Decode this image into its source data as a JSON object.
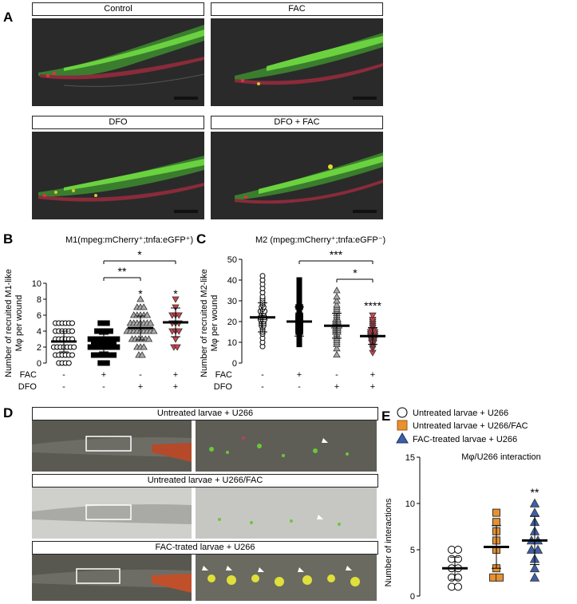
{
  "panelA": {
    "letter": "A",
    "images": [
      {
        "label": "Control"
      },
      {
        "label": "FAC"
      },
      {
        "label": "DFO"
      },
      {
        "label": "DFO + FAC"
      }
    ]
  },
  "panelB": {
    "letter": "B",
    "title": "M1(mpeg:mCherry⁺;tnfa:eGFP⁺)",
    "ylabel_line1": "Number of recruited M1-like",
    "ylabel_line2": "Mφ per wound",
    "row_labels": [
      "FAC",
      "DFO"
    ],
    "conditions": [
      {
        "FAC": "-",
        "DFO": "-"
      },
      {
        "FAC": "+",
        "DFO": "-"
      },
      {
        "FAC": "-",
        "DFO": "+"
      },
      {
        "FAC": "+",
        "DFO": "+"
      }
    ],
    "significance": {
      "bracket1": "**",
      "bracket2": "*",
      "group3": "*",
      "group4": "*"
    }
  },
  "panelC": {
    "letter": "C",
    "title": "M2 (mpeg:mCherry⁺;tnfa:eGFP⁻)",
    "ylabel_line1": "Number of recruited M2-like",
    "ylabel_line2": "Mφ per wound",
    "row_labels": [
      "FAC",
      "DFO"
    ],
    "conditions": [
      {
        "FAC": "-",
        "DFO": "-"
      },
      {
        "FAC": "+",
        "DFO": "-"
      },
      {
        "FAC": "-",
        "DFO": "+"
      },
      {
        "FAC": "+",
        "DFO": "+"
      }
    ],
    "significance": {
      "bracket1": "***",
      "bracket2": "*",
      "group4": "****"
    }
  },
  "panelD": {
    "letter": "D",
    "rows": [
      {
        "label": "Untreated larvae + U266"
      },
      {
        "label": "Untreated larvae + U266/FAC"
      },
      {
        "label": "FAC-trated larvae + U266"
      }
    ]
  },
  "panelE": {
    "letter": "E",
    "legend": [
      {
        "label": "Untreated larvae + U266",
        "color": "#ffffff"
      },
      {
        "label": "Untreated larvae + U266/FAC",
        "color": "#e8912e"
      },
      {
        "label": "FAC-treated larvae + U266",
        "color": "#3d5fa8"
      }
    ],
    "title": "Mφ/U266 interaction",
    "ylabel": "Number of interactions",
    "significance": {
      "group3": "**"
    }
  },
  "chart_data": [
    {
      "type": "scatter",
      "title": "M1(mpeg:mCherry⁺;tnfa:eGFP⁺)",
      "ylabel": "Number of recruited M1-like Mφ per wound",
      "ylim": [
        0,
        10
      ],
      "yticks": [
        0,
        2,
        4,
        6,
        8,
        10
      ],
      "groups": [
        {
          "marker": "circle-open",
          "color": "#ffffff",
          "mean": 2.7,
          "sd": 1.3,
          "values": [
            0,
            0,
            0,
            0,
            1,
            1,
            1,
            1,
            1,
            1,
            2,
            2,
            2,
            2,
            2,
            2,
            2,
            3,
            3,
            3,
            3,
            3,
            3,
            4,
            4,
            4,
            4,
            4,
            4,
            5,
            5,
            5,
            5,
            5,
            5
          ]
        },
        {
          "marker": "square",
          "color": "#000000",
          "mean": 2.5,
          "sd": 1.1,
          "values": [
            0,
            0,
            0,
            1,
            1,
            1,
            1,
            1,
            1,
            1,
            2,
            2,
            2,
            2,
            2,
            2,
            2,
            2,
            2,
            3,
            3,
            3,
            3,
            3,
            3,
            3,
            3,
            3,
            4,
            4,
            4,
            4,
            4,
            5,
            5,
            5
          ]
        },
        {
          "marker": "triangle",
          "color": "#aaaaaa",
          "mean": 4.4,
          "sd": 1.5,
          "values": [
            1,
            1,
            2,
            2,
            2,
            3,
            3,
            3,
            3,
            3,
            3,
            4,
            4,
            4,
            4,
            4,
            4,
            4,
            4,
            4,
            5,
            5,
            5,
            5,
            5,
            5,
            5,
            6,
            6,
            6,
            6,
            6,
            7,
            7,
            7,
            8
          ]
        },
        {
          "marker": "triangle-down",
          "color": "#d3404c",
          "mean": 5.1,
          "sd": 1.8,
          "values": [
            2,
            2,
            3,
            4,
            4,
            4,
            5,
            5,
            5,
            6,
            6,
            6,
            7,
            8
          ]
        }
      ]
    },
    {
      "type": "scatter",
      "title": "M2 (mpeg:mCherry⁺;tnfa:eGFP⁻)",
      "ylabel": "Number of recruited M2-like Mφ per wound",
      "ylim": [
        0,
        50
      ],
      "yticks": [
        0,
        10,
        20,
        30,
        40,
        50
      ],
      "groups": [
        {
          "marker": "circle-open",
          "color": "#ffffff",
          "mean": 22,
          "sd": 7,
          "values": [
            8,
            10,
            12,
            14,
            15,
            16,
            17,
            18,
            18,
            19,
            19,
            20,
            20,
            21,
            21,
            21,
            22,
            22,
            22,
            23,
            23,
            24,
            24,
            25,
            25,
            25,
            26,
            27,
            27,
            28,
            29,
            30,
            31,
            32,
            34,
            36,
            38,
            40,
            42
          ]
        },
        {
          "marker": "square",
          "color": "#000000",
          "mean": 20,
          "sd": 7,
          "values": [
            9,
            10,
            11,
            12,
            13,
            14,
            15,
            15,
            16,
            16,
            17,
            17,
            18,
            18,
            19,
            19,
            20,
            20,
            21,
            21,
            22,
            22,
            23,
            23,
            24,
            25,
            26,
            27,
            27,
            28,
            29,
            30,
            31,
            32,
            34,
            36,
            38,
            40
          ]
        },
        {
          "marker": "triangle",
          "color": "#aaaaaa",
          "mean": 18,
          "sd": 6,
          "values": [
            4,
            7,
            9,
            10,
            11,
            12,
            13,
            14,
            15,
            15,
            16,
            16,
            17,
            17,
            18,
            18,
            18,
            19,
            19,
            20,
            20,
            21,
            21,
            22,
            23,
            24,
            25,
            26,
            27,
            28,
            30,
            32,
            35
          ]
        },
        {
          "marker": "triangle-down",
          "color": "#d3404c",
          "mean": 13,
          "sd": 4,
          "values": [
            5,
            7,
            8,
            9,
            10,
            10,
            11,
            11,
            12,
            12,
            12,
            13,
            13,
            13,
            14,
            14,
            14,
            15,
            15,
            15,
            16,
            16,
            17,
            18,
            19,
            20,
            21,
            23
          ]
        }
      ]
    },
    {
      "type": "scatter",
      "title": "Mφ/U266 interaction",
      "ylabel": "Number of interactions",
      "ylim": [
        0,
        15
      ],
      "yticks": [
        0,
        5,
        10,
        15
      ],
      "series": [
        {
          "name": "Untreated larvae + U266",
          "marker": "circle-open",
          "color": "#ffffff",
          "mean": 3.0,
          "sd": 1.2,
          "values": [
            1,
            1,
            2,
            2,
            3,
            3,
            4,
            4,
            5,
            5
          ]
        },
        {
          "name": "Untreated larvae + U266/FAC",
          "marker": "square",
          "color": "#e8912e",
          "mean": 5.3,
          "sd": 2.3,
          "values": [
            2,
            2,
            3,
            5,
            6,
            7,
            8,
            9
          ]
        },
        {
          "name": "FAC-treated larvae + U266",
          "marker": "triangle",
          "color": "#3d5fa8",
          "mean": 6.0,
          "sd": 2.6,
          "values": [
            2,
            3,
            4,
            5,
            5,
            6,
            6,
            7,
            8,
            9,
            10
          ]
        }
      ]
    }
  ]
}
